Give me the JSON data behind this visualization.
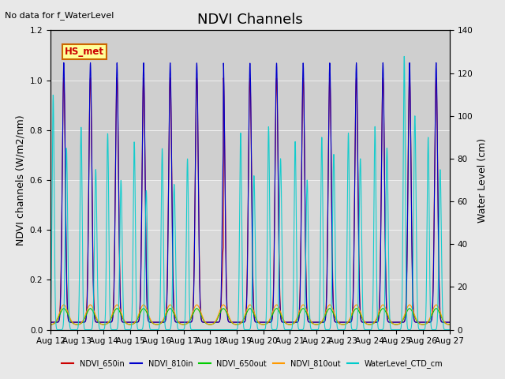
{
  "title": "NDVI Channels",
  "xlabel": "",
  "ylabel_left": "NDVI channels (W/m2/nm)",
  "ylabel_right": "Water Level (cm)",
  "annotation": "No data for f_WaterLevel",
  "box_label": "HS_met",
  "ylim_left": [
    0.0,
    1.2
  ],
  "ylim_right": [
    0,
    140
  ],
  "xtick_labels": [
    "Aug 12",
    "Aug 13",
    "Aug 14",
    "Aug 15",
    "Aug 16",
    "Aug 17",
    "Aug 18",
    "Aug 19",
    "Aug 20",
    "Aug 21",
    "Aug 22",
    "Aug 23",
    "Aug 24",
    "Aug 25",
    "Aug 26",
    "Aug 27"
  ],
  "colors": {
    "NDVI_650in": "#cc0000",
    "NDVI_810in": "#0000cc",
    "NDVI_650out": "#00cc00",
    "NDVI_810out": "#ff9900",
    "WaterLevel_CTD_cm": "#00cccc"
  },
  "fig_bg": "#e8e8e8",
  "plot_bg": "#d8d8d8",
  "title_fontsize": 13,
  "label_fontsize": 9,
  "tick_fontsize": 7.5
}
